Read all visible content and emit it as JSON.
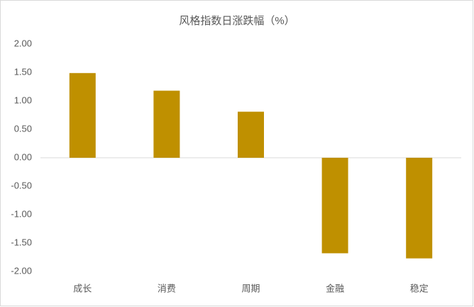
{
  "chart_data": {
    "type": "bar",
    "title": "风格指数日涨跌幅（%）",
    "categories": [
      "成长",
      "消费",
      "周期",
      "金融",
      "稳定"
    ],
    "values": [
      1.49,
      1.18,
      0.81,
      -1.68,
      -1.77
    ],
    "color": "#bf9000",
    "ylim": [
      -2,
      2
    ],
    "yticks": [
      {
        "value": -2,
        "label": "-2.00"
      },
      {
        "value": -1.5,
        "label": "-1.50"
      },
      {
        "value": -1,
        "label": "-1.00"
      },
      {
        "value": -0.5,
        "label": "-0.50"
      },
      {
        "value": 0,
        "label": "0.00"
      },
      {
        "value": 0.5,
        "label": "0.50"
      },
      {
        "value": 1,
        "label": "1.00"
      },
      {
        "value": 1.5,
        "label": "1.50"
      },
      {
        "value": 2,
        "label": "2.00"
      }
    ],
    "grid": false
  }
}
